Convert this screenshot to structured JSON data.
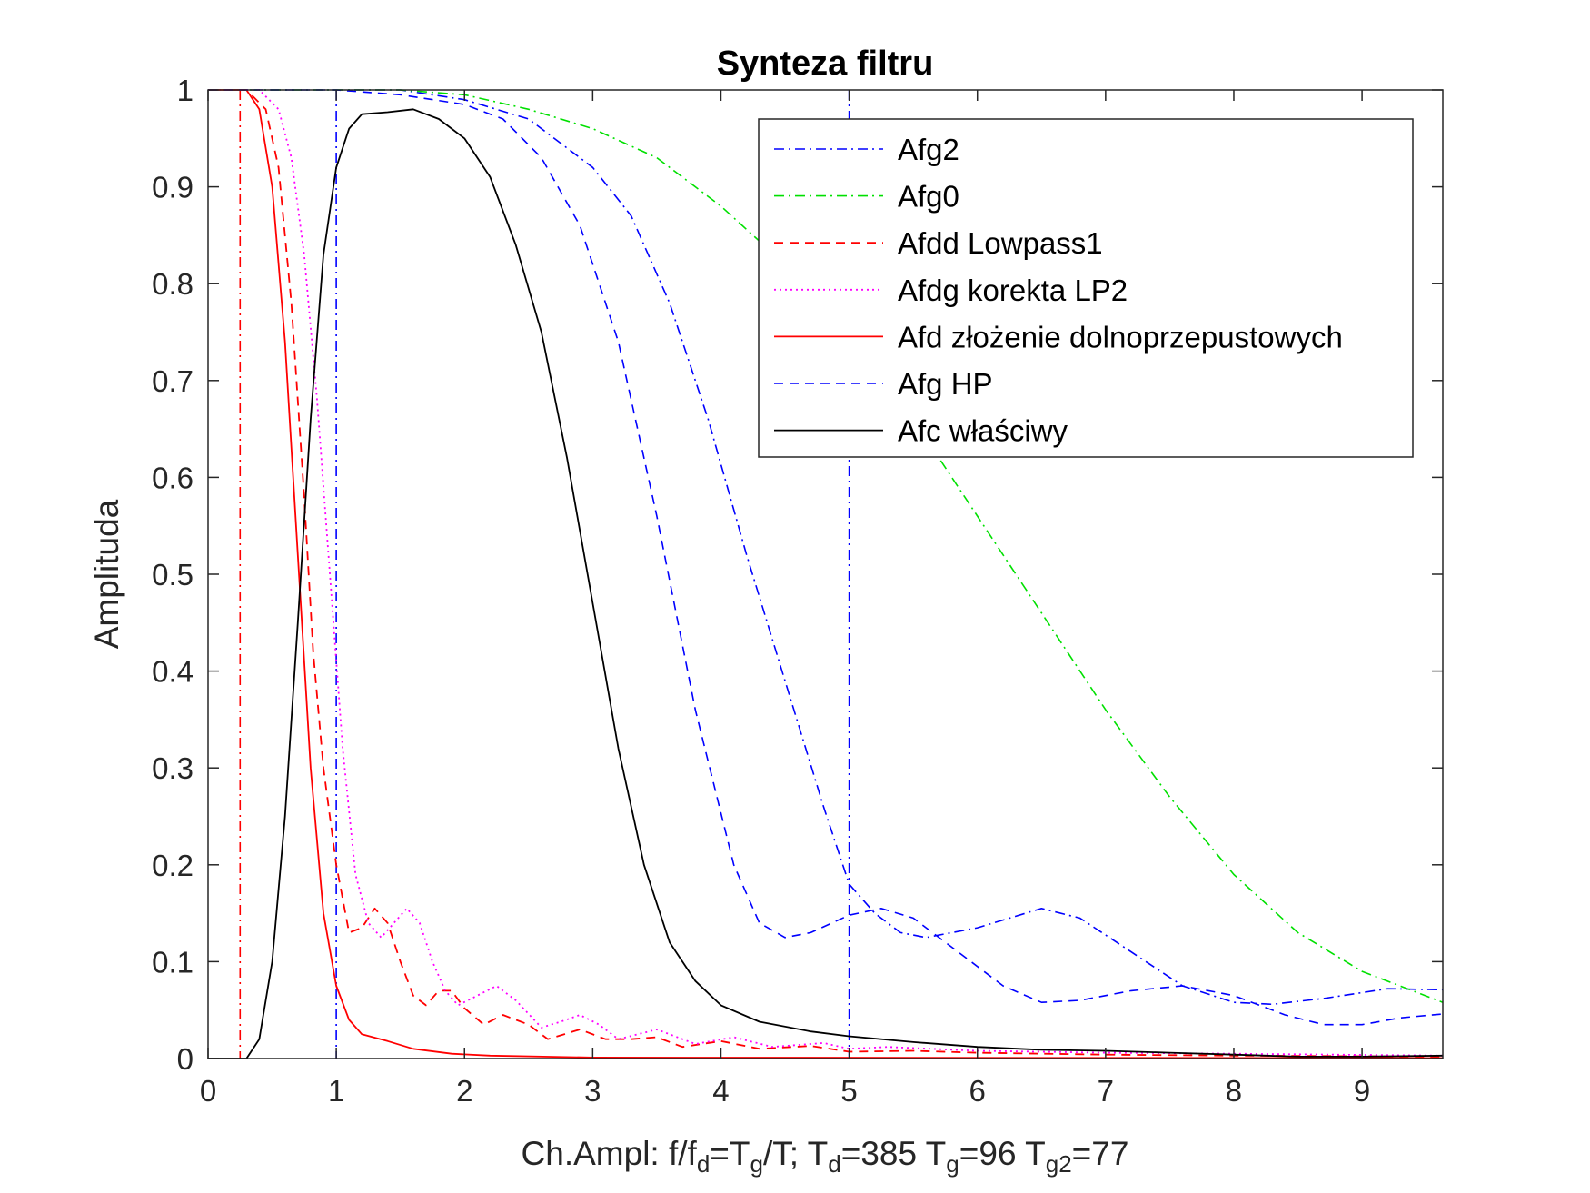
{
  "chart_data": {
    "type": "line",
    "title": "Synteza filtru",
    "ylabel": "Amplituda",
    "xlabel_parts": [
      {
        "t": "Ch.Ampl: f/f",
        "s": ""
      },
      {
        "t": "d",
        "s": "sub"
      },
      {
        "t": "=T",
        "s": ""
      },
      {
        "t": "g",
        "s": "sub"
      },
      {
        "t": "/T; T",
        "s": ""
      },
      {
        "t": "d",
        "s": "sub"
      },
      {
        "t": "=385 T",
        "s": ""
      },
      {
        "t": "g",
        "s": "sub"
      },
      {
        "t": "=96 T",
        "s": ""
      },
      {
        "t": "g2",
        "s": "sub"
      },
      {
        "t": "=77",
        "s": ""
      }
    ],
    "xlim": [
      0,
      9.63
    ],
    "ylim": [
      0,
      1
    ],
    "xticks": [
      0,
      1,
      2,
      3,
      4,
      5,
      6,
      7,
      8,
      9
    ],
    "xtick_labels": [
      "0",
      "1",
      "2",
      "3",
      "4",
      "5",
      "6",
      "7",
      "8",
      "9"
    ],
    "yticks": [
      0,
      0.1,
      0.2,
      0.3,
      0.4,
      0.5,
      0.6,
      0.7,
      0.8,
      0.9,
      1
    ],
    "ytick_labels": [
      "0",
      "0.1",
      "0.2",
      "0.3",
      "0.4",
      "0.5",
      "0.6",
      "0.7",
      "0.8",
      "0.9",
      "1"
    ],
    "grid": false,
    "legend_position": "top-right",
    "vertical_lines": [
      {
        "x": 0.25,
        "color": "#ff0000",
        "style": "dashdot"
      },
      {
        "x": 1.0,
        "color": "#0000ff",
        "style": "dashdot"
      },
      {
        "x": 5.0,
        "color": "#0000ff",
        "style": "dashdot"
      }
    ],
    "series": [
      {
        "name": "Afg2",
        "color": "#0000ff",
        "style": "dashdot",
        "width": 1.6,
        "points": [
          [
            0,
            1
          ],
          [
            0.5,
            1
          ],
          [
            1,
            1
          ],
          [
            1.5,
            1
          ],
          [
            2,
            0.99
          ],
          [
            2.5,
            0.97
          ],
          [
            3,
            0.92
          ],
          [
            3.3,
            0.87
          ],
          [
            3.6,
            0.78
          ],
          [
            3.9,
            0.66
          ],
          [
            4.2,
            0.52
          ],
          [
            4.5,
            0.39
          ],
          [
            4.8,
            0.26
          ],
          [
            5.0,
            0.18
          ],
          [
            5.2,
            0.15
          ],
          [
            5.4,
            0.13
          ],
          [
            5.6,
            0.125
          ],
          [
            6.0,
            0.135
          ],
          [
            6.5,
            0.155
          ],
          [
            6.8,
            0.145
          ],
          [
            7.2,
            0.11
          ],
          [
            7.6,
            0.075
          ],
          [
            8.0,
            0.058
          ],
          [
            8.3,
            0.056
          ],
          [
            8.7,
            0.062
          ],
          [
            9.2,
            0.072
          ],
          [
            9.63,
            0.071
          ]
        ]
      },
      {
        "name": "Afg0",
        "color": "#00e000",
        "style": "dashdot",
        "width": 1.6,
        "points": [
          [
            0,
            1
          ],
          [
            0.5,
            1
          ],
          [
            1,
            1
          ],
          [
            1.5,
            1
          ],
          [
            2,
            0.995
          ],
          [
            2.5,
            0.98
          ],
          [
            3,
            0.96
          ],
          [
            3.5,
            0.93
          ],
          [
            4,
            0.88
          ],
          [
            4.5,
            0.82
          ],
          [
            5,
            0.75
          ],
          [
            5.5,
            0.66
          ],
          [
            6,
            0.56
          ],
          [
            6.5,
            0.46
          ],
          [
            7,
            0.36
          ],
          [
            7.5,
            0.27
          ],
          [
            8,
            0.19
          ],
          [
            8.5,
            0.13
          ],
          [
            9,
            0.09
          ],
          [
            9.63,
            0.058
          ]
        ]
      },
      {
        "name": "Afdd Lowpass1",
        "color": "#ff0000",
        "style": "dashed",
        "width": 1.8,
        "points": [
          [
            0,
            1
          ],
          [
            0.3,
            1
          ],
          [
            0.45,
            0.98
          ],
          [
            0.55,
            0.92
          ],
          [
            0.65,
            0.78
          ],
          [
            0.75,
            0.58
          ],
          [
            0.82,
            0.42
          ],
          [
            0.9,
            0.3
          ],
          [
            1.0,
            0.2
          ],
          [
            1.1,
            0.13
          ],
          [
            1.2,
            0.135
          ],
          [
            1.3,
            0.155
          ],
          [
            1.4,
            0.14
          ],
          [
            1.5,
            0.1
          ],
          [
            1.6,
            0.065
          ],
          [
            1.7,
            0.055
          ],
          [
            1.8,
            0.07
          ],
          [
            1.9,
            0.07
          ],
          [
            2.0,
            0.052
          ],
          [
            2.15,
            0.035
          ],
          [
            2.3,
            0.045
          ],
          [
            2.5,
            0.035
          ],
          [
            2.65,
            0.02
          ],
          [
            2.9,
            0.03
          ],
          [
            3.1,
            0.02
          ],
          [
            3.3,
            0.02
          ],
          [
            3.5,
            0.022
          ],
          [
            3.7,
            0.012
          ],
          [
            4.0,
            0.018
          ],
          [
            4.3,
            0.01
          ],
          [
            4.7,
            0.013
          ],
          [
            5.0,
            0.007
          ],
          [
            5.5,
            0.008
          ],
          [
            6,
            0.006
          ],
          [
            7,
            0.004
          ],
          [
            8,
            0.003
          ],
          [
            9.63,
            0.002
          ]
        ]
      },
      {
        "name": "Afdg korekta LP2",
        "color": "#ff00ff",
        "style": "dotted",
        "width": 1.8,
        "points": [
          [
            0,
            1
          ],
          [
            0.4,
            1
          ],
          [
            0.55,
            0.98
          ],
          [
            0.65,
            0.93
          ],
          [
            0.75,
            0.83
          ],
          [
            0.85,
            0.68
          ],
          [
            0.95,
            0.5
          ],
          [
            1.05,
            0.32
          ],
          [
            1.15,
            0.19
          ],
          [
            1.25,
            0.14
          ],
          [
            1.35,
            0.125
          ],
          [
            1.45,
            0.14
          ],
          [
            1.55,
            0.155
          ],
          [
            1.65,
            0.14
          ],
          [
            1.75,
            0.1
          ],
          [
            1.85,
            0.07
          ],
          [
            1.95,
            0.055
          ],
          [
            2.1,
            0.065
          ],
          [
            2.25,
            0.075
          ],
          [
            2.4,
            0.06
          ],
          [
            2.6,
            0.032
          ],
          [
            2.75,
            0.038
          ],
          [
            2.9,
            0.045
          ],
          [
            3.05,
            0.035
          ],
          [
            3.2,
            0.02
          ],
          [
            3.5,
            0.03
          ],
          [
            3.8,
            0.015
          ],
          [
            4.1,
            0.022
          ],
          [
            4.4,
            0.012
          ],
          [
            4.8,
            0.016
          ],
          [
            5.0,
            0.01
          ],
          [
            5.3,
            0.012
          ],
          [
            6,
            0.008
          ],
          [
            7,
            0.006
          ],
          [
            8,
            0.005
          ],
          [
            9.63,
            0.003
          ]
        ]
      },
      {
        "name": "Afd złożenie dolnoprzepustowych",
        "color": "#ff0000",
        "style": "solid",
        "width": 1.8,
        "points": [
          [
            0,
            1
          ],
          [
            0.3,
            1
          ],
          [
            0.4,
            0.98
          ],
          [
            0.5,
            0.9
          ],
          [
            0.6,
            0.74
          ],
          [
            0.7,
            0.52
          ],
          [
            0.8,
            0.3
          ],
          [
            0.9,
            0.15
          ],
          [
            1.0,
            0.075
          ],
          [
            1.1,
            0.04
          ],
          [
            1.2,
            0.025
          ],
          [
            1.4,
            0.018
          ],
          [
            1.6,
            0.01
          ],
          [
            1.9,
            0.005
          ],
          [
            2.2,
            0.003
          ],
          [
            3,
            0.001
          ],
          [
            9.63,
            0.0005
          ]
        ]
      },
      {
        "name": "Afg HP",
        "color": "#0000ff",
        "style": "dashed",
        "width": 1.6,
        "points": [
          [
            0,
            1
          ],
          [
            1,
            1
          ],
          [
            1.5,
            0.995
          ],
          [
            2,
            0.985
          ],
          [
            2.3,
            0.97
          ],
          [
            2.6,
            0.93
          ],
          [
            2.9,
            0.86
          ],
          [
            3.2,
            0.74
          ],
          [
            3.5,
            0.56
          ],
          [
            3.8,
            0.36
          ],
          [
            4.1,
            0.2
          ],
          [
            4.3,
            0.14
          ],
          [
            4.5,
            0.125
          ],
          [
            4.7,
            0.13
          ],
          [
            5.0,
            0.148
          ],
          [
            5.25,
            0.155
          ],
          [
            5.5,
            0.145
          ],
          [
            5.8,
            0.115
          ],
          [
            6.2,
            0.075
          ],
          [
            6.5,
            0.058
          ],
          [
            6.8,
            0.06
          ],
          [
            7.2,
            0.07
          ],
          [
            7.6,
            0.075
          ],
          [
            8.0,
            0.065
          ],
          [
            8.4,
            0.045
          ],
          [
            8.7,
            0.035
          ],
          [
            9.0,
            0.035
          ],
          [
            9.3,
            0.042
          ],
          [
            9.63,
            0.046
          ]
        ]
      },
      {
        "name": "Afc właściwy",
        "color": "#000000",
        "style": "solid",
        "width": 1.8,
        "points": [
          [
            0,
            0
          ],
          [
            0.3,
            0
          ],
          [
            0.4,
            0.02
          ],
          [
            0.5,
            0.1
          ],
          [
            0.6,
            0.25
          ],
          [
            0.7,
            0.45
          ],
          [
            0.8,
            0.66
          ],
          [
            0.9,
            0.83
          ],
          [
            1.0,
            0.92
          ],
          [
            1.1,
            0.96
          ],
          [
            1.2,
            0.975
          ],
          [
            1.4,
            0.977
          ],
          [
            1.6,
            0.98
          ],
          [
            1.8,
            0.97
          ],
          [
            2.0,
            0.95
          ],
          [
            2.2,
            0.91
          ],
          [
            2.4,
            0.84
          ],
          [
            2.6,
            0.75
          ],
          [
            2.8,
            0.62
          ],
          [
            3.0,
            0.47
          ],
          [
            3.2,
            0.32
          ],
          [
            3.4,
            0.2
          ],
          [
            3.6,
            0.12
          ],
          [
            3.8,
            0.08
          ],
          [
            4.0,
            0.055
          ],
          [
            4.3,
            0.038
          ],
          [
            4.7,
            0.028
          ],
          [
            5.0,
            0.023
          ],
          [
            5.5,
            0.017
          ],
          [
            6,
            0.012
          ],
          [
            6.5,
            0.009
          ],
          [
            7,
            0.008
          ],
          [
            7.5,
            0.006
          ],
          [
            8,
            0.004
          ],
          [
            8.5,
            0.002
          ],
          [
            9,
            0.002
          ],
          [
            9.63,
            0.003
          ]
        ]
      }
    ]
  }
}
